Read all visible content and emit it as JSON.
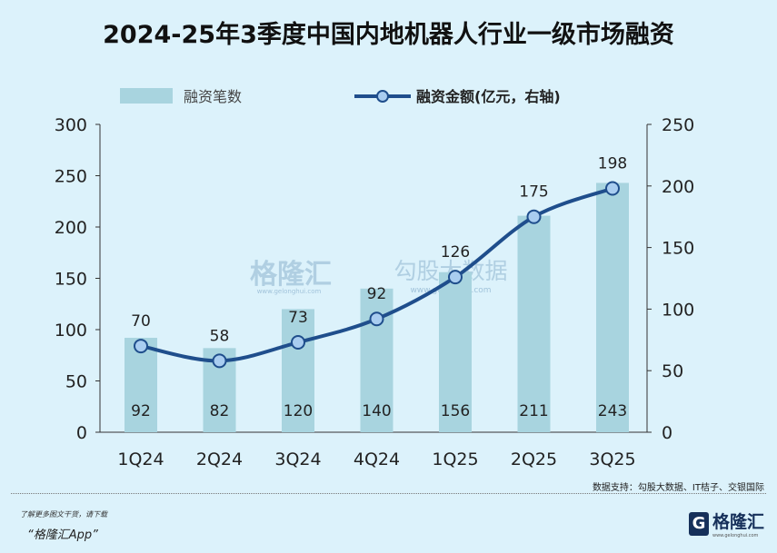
{
  "title": "2024-25年3季度中国内地机器人行业一级市场融资",
  "chart_data": {
    "type": "bar+line",
    "title": "2024-25年3季度中国内地机器人行业一级市场融资",
    "categories": [
      "1Q24",
      "2Q24",
      "3Q24",
      "4Q24",
      "1Q25",
      "2Q25",
      "3Q25"
    ],
    "series": [
      {
        "name": "融资笔数",
        "type": "bar",
        "axis": "left",
        "values": [
          92,
          82,
          120,
          140,
          156,
          211,
          243
        ],
        "color": "#a8d4df"
      },
      {
        "name": "融资金额(亿元，右轴)",
        "type": "line",
        "axis": "right",
        "values": [
          70,
          58,
          73,
          92,
          126,
          175,
          198
        ],
        "color": "#1f4e8c"
      }
    ],
    "left_axis": {
      "ylim": [
        0,
        300
      ],
      "ticks": [
        0,
        50,
        100,
        150,
        200,
        250,
        300
      ]
    },
    "right_axis": {
      "ylim": [
        0,
        250
      ],
      "ticks": [
        0,
        50,
        100,
        150,
        200,
        250
      ]
    },
    "legend": "top",
    "grid": false
  },
  "watermark": {
    "brand": "格隆汇",
    "brand_url": "www.gelonghui.com",
    "partner": "勾股大数据",
    "partner_url": "www.gogudata.com"
  },
  "source": "数据支持：勾股大数据、IT桔子、交银国际",
  "promo": {
    "line1": "了解更多图文干货，请下载",
    "line2": "“格隆汇App”"
  },
  "logo": {
    "text": "格隆汇",
    "url": "www.gelonghui.com"
  }
}
